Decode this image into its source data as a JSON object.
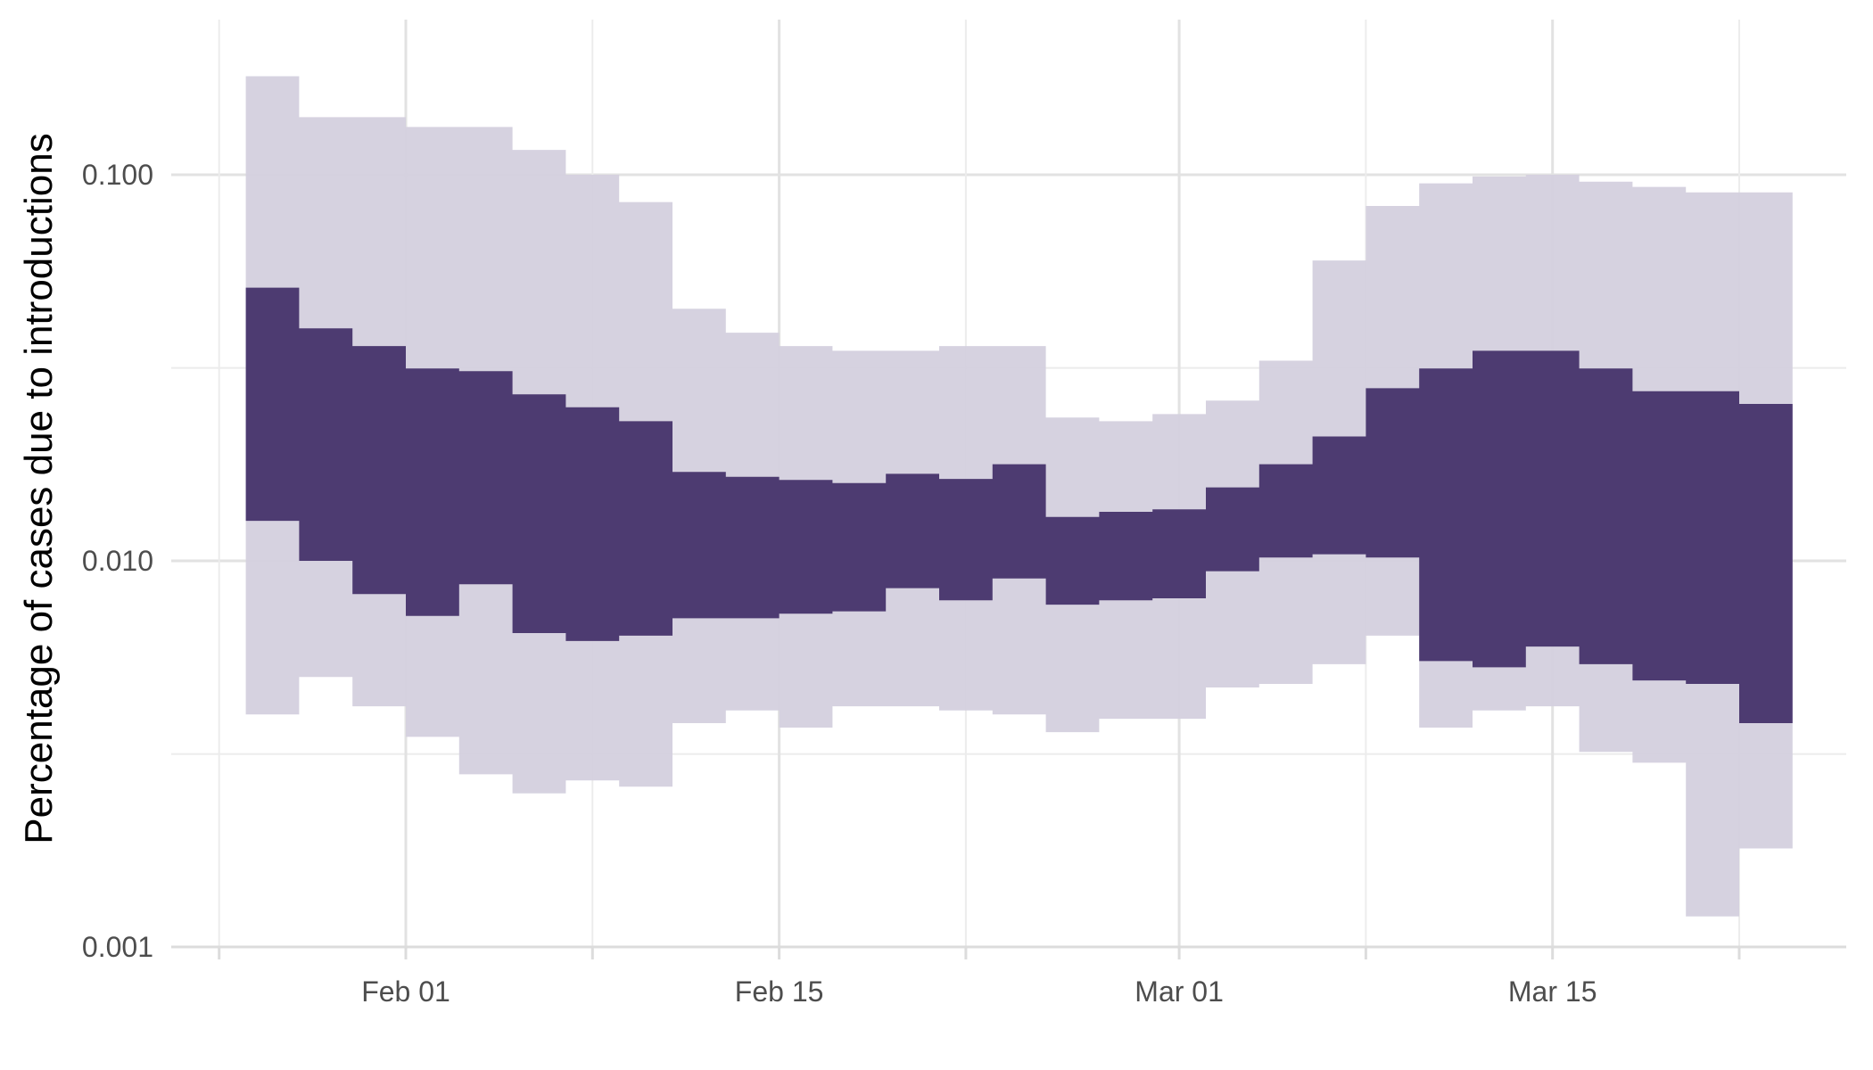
{
  "chart_data": {
    "type": "area",
    "ylabel": "Percentage of cases due to introductions",
    "xlabel": "",
    "y_scale": "log10",
    "ylim": [
      0.001,
      0.2
    ],
    "y_ticks": [
      {
        "value": 0.1,
        "label": "0.100"
      },
      {
        "value": 0.01,
        "label": "0.010"
      },
      {
        "value": 0.001,
        "label": "0.001"
      }
    ],
    "y_minor_ticks": [
      0.0316,
      0.00316
    ],
    "x_axis": {
      "type": "date",
      "range": [
        "2020-01-24",
        "2020-03-28"
      ],
      "ticks": [
        {
          "date": "2020-02-01",
          "label": "Feb 01"
        },
        {
          "date": "2020-02-15",
          "label": "Feb 15"
        },
        {
          "date": "2020-03-01",
          "label": "Mar 01"
        },
        {
          "date": "2020-03-15",
          "label": "Mar 15"
        }
      ],
      "minor_ticks": [
        "2020-01-25",
        "2020-02-08",
        "2020-02-22",
        "2020-03-08",
        "2020-03-22"
      ]
    },
    "grid": true,
    "legend": "none",
    "colors": {
      "inner_band": "#46336a",
      "outer_band": "#d4d0de",
      "grid": "#e2e2e2"
    },
    "bin_edges": [
      "2020-01-26",
      "2020-01-28",
      "2020-01-30",
      "2020-02-01",
      "2020-02-03",
      "2020-02-05",
      "2020-02-07",
      "2020-02-09",
      "2020-02-11",
      "2020-02-13",
      "2020-02-15",
      "2020-02-17",
      "2020-02-19",
      "2020-02-21",
      "2020-02-23",
      "2020-02-25",
      "2020-02-27",
      "2020-02-29",
      "2020-03-02",
      "2020-03-04",
      "2020-03-06",
      "2020-03-08",
      "2020-03-10",
      "2020-03-12",
      "2020-03-14",
      "2020-03-16",
      "2020-03-18",
      "2020-03-20",
      "2020-03-22",
      "2020-03-24"
    ],
    "series": [
      {
        "name": "",
        "role": "outer-interval",
        "lower": [
          0.004,
          0.005,
          0.0042,
          0.0035,
          0.0028,
          0.0025,
          0.0027,
          0.0026,
          0.0038,
          0.0041,
          0.0037,
          0.0042,
          0.0042,
          0.0041,
          0.004,
          0.0036,
          0.0039,
          0.0039,
          0.0047,
          0.0048,
          0.0054,
          0.0064,
          0.0037,
          0.0041,
          0.0042,
          0.0032,
          0.003,
          0.0012,
          0.0018
        ],
        "upper": [
          0.18,
          0.141,
          0.141,
          0.133,
          0.133,
          0.116,
          0.1,
          0.085,
          0.045,
          0.039,
          0.036,
          0.035,
          0.035,
          0.036,
          0.036,
          0.0235,
          0.023,
          0.024,
          0.026,
          0.033,
          0.06,
          0.083,
          0.095,
          0.099,
          0.1,
          0.096,
          0.093,
          0.09,
          0.09
        ]
      },
      {
        "name": "",
        "role": "inner-interval",
        "lower": [
          0.0127,
          0.01,
          0.0082,
          0.0072,
          0.0087,
          0.0065,
          0.0062,
          0.0064,
          0.0071,
          0.0071,
          0.0073,
          0.0074,
          0.0085,
          0.0079,
          0.009,
          0.0077,
          0.0079,
          0.008,
          0.0094,
          0.0102,
          0.0104,
          0.0102,
          0.0055,
          0.0053,
          0.006,
          0.0054,
          0.0049,
          0.0048,
          0.0038
        ],
        "upper": [
          0.051,
          0.04,
          0.036,
          0.0315,
          0.031,
          0.027,
          0.025,
          0.023,
          0.017,
          0.0165,
          0.0162,
          0.0159,
          0.0168,
          0.0163,
          0.0178,
          0.013,
          0.0134,
          0.0136,
          0.0155,
          0.0178,
          0.021,
          0.028,
          0.0315,
          0.035,
          0.035,
          0.0315,
          0.0275,
          0.0275,
          0.0255
        ]
      }
    ]
  }
}
